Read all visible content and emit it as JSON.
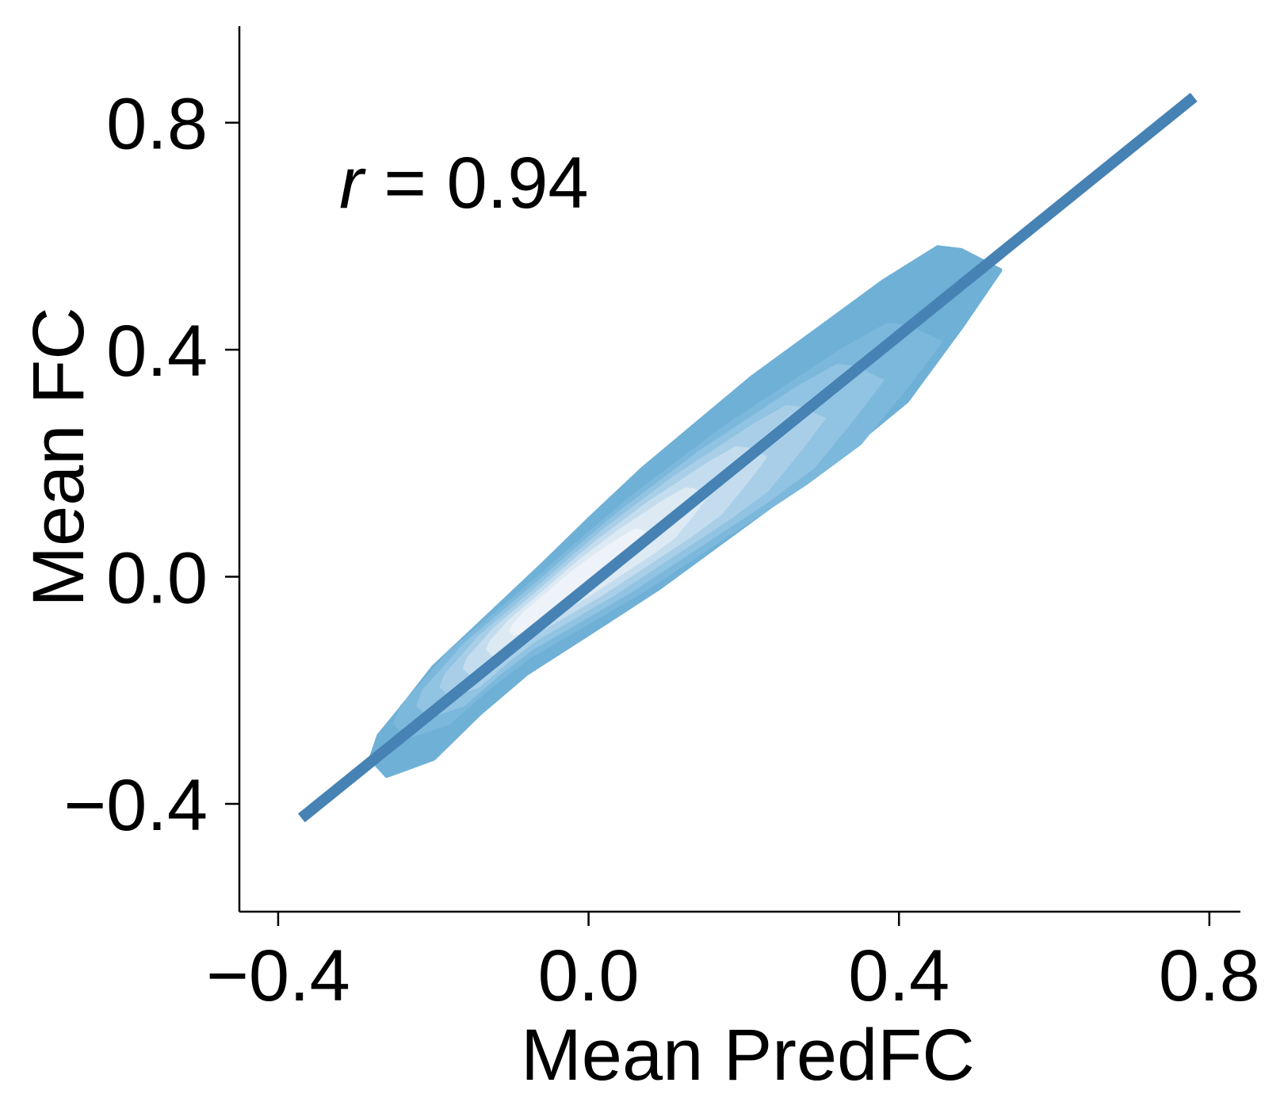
{
  "chart_data": {
    "type": "density-scatter",
    "xlabel": "Mean PredFC",
    "ylabel": "Mean FC",
    "xlim": [
      -0.45,
      0.84
    ],
    "ylim": [
      -0.59,
      0.97
    ],
    "x_ticks": [
      -0.4,
      0.0,
      0.4,
      0.8
    ],
    "y_ticks": [
      -0.4,
      0.0,
      0.4,
      0.8
    ],
    "x_tick_labels": [
      "−0.4",
      "0.0",
      "0.4",
      "0.8"
    ],
    "y_tick_labels": [
      "−0.4",
      "0.0",
      "0.4",
      "0.8"
    ],
    "annotation": {
      "var": "r",
      "text": " = 0.94",
      "value": 0.94
    },
    "regression_line": {
      "x": [
        -0.37,
        0.78
      ],
      "y": [
        -0.425,
        0.845
      ]
    },
    "density": {
      "outline": [
        [
          -0.27,
          -0.28
        ],
        [
          -0.24,
          -0.23
        ],
        [
          -0.2,
          -0.16
        ],
        [
          -0.13,
          -0.07
        ],
        [
          -0.06,
          0.02
        ],
        [
          0.0,
          0.1
        ],
        [
          0.07,
          0.19
        ],
        [
          0.14,
          0.27
        ],
        [
          0.21,
          0.35
        ],
        [
          0.3,
          0.44
        ],
        [
          0.38,
          0.52
        ],
        [
          0.45,
          0.58
        ],
        [
          0.48,
          0.575
        ],
        [
          0.53,
          0.54
        ],
        [
          0.48,
          0.44
        ],
        [
          0.41,
          0.31
        ],
        [
          0.33,
          0.22
        ],
        [
          0.25,
          0.14
        ],
        [
          0.17,
          0.06
        ],
        [
          0.09,
          -0.02
        ],
        [
          0.0,
          -0.1
        ],
        [
          -0.08,
          -0.17
        ],
        [
          -0.14,
          -0.24
        ],
        [
          -0.2,
          -0.32
        ],
        [
          -0.26,
          -0.35
        ],
        [
          -0.28,
          -0.32
        ]
      ],
      "peak": [
        -0.05,
        -0.04
      ],
      "colors": [
        "#6fb0d6",
        "#7cb8dc",
        "#91c3e2",
        "#a9cfe8",
        "#c4ddee",
        "#ddeaf4",
        "#eef2f9"
      ]
    },
    "colors": {
      "density": "#6fb0d6",
      "line": "#4682b4",
      "axis": "#000000"
    }
  }
}
